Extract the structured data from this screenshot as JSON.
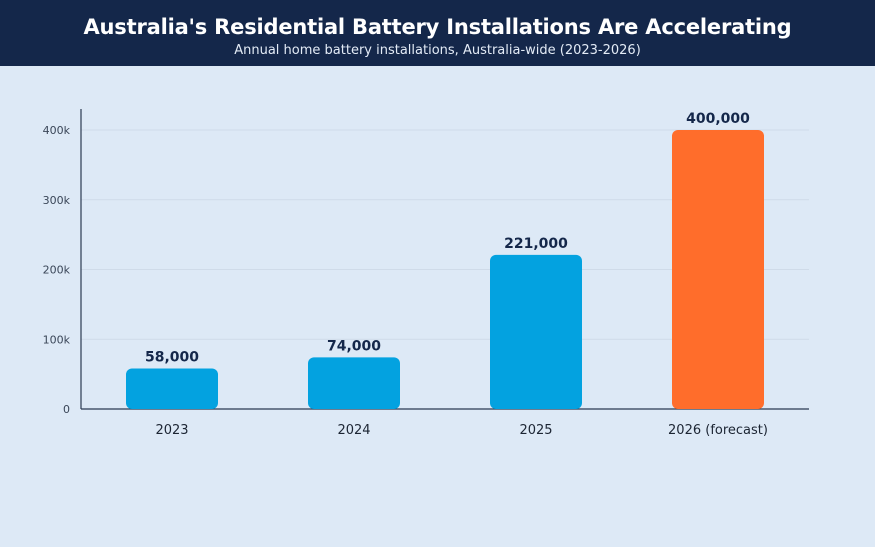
{
  "header": {
    "title": "Australia's Residential Battery Installations Are Accelerating",
    "subtitle": "Annual home battery installations, Australia-wide (2023-2026)"
  },
  "chart_data": {
    "type": "bar",
    "categories": [
      "2023",
      "2024",
      "2025",
      "2026 (forecast)"
    ],
    "values": [
      58000,
      74000,
      221000,
      400000
    ],
    "value_labels": [
      "58,000",
      "74,000",
      "221,000",
      "400,000"
    ],
    "bar_colors": [
      "#03a2e0",
      "#03a2e0",
      "#03a2e0",
      "#ff6d2b"
    ],
    "ylim": [
      0,
      430000
    ],
    "yticks": [
      0,
      100000,
      200000,
      300000,
      400000
    ],
    "ytick_labels": [
      "0",
      "100k",
      "200k",
      "300k",
      "400k"
    ],
    "grid": true,
    "legend": "none",
    "xlabel": "",
    "ylabel": ""
  }
}
